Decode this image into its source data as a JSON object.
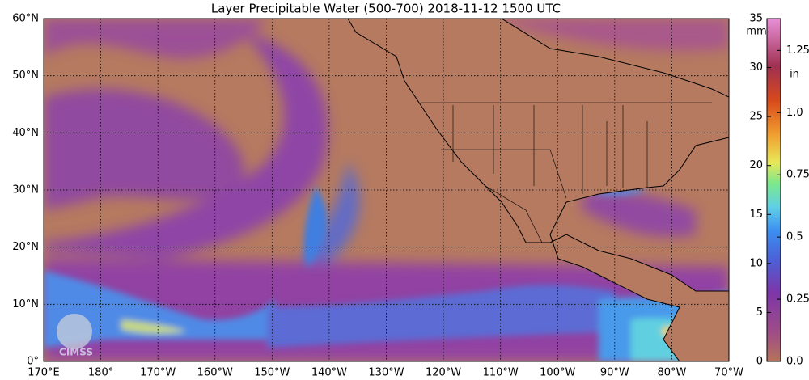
{
  "title": "Layer Precipitable Water (500-700)  2018-11-12 1500 UTC",
  "map": {
    "lat_labels": [
      "60°N",
      "50°N",
      "40°N",
      "30°N",
      "20°N",
      "10°N",
      "0°"
    ],
    "lon_labels": [
      "170°E",
      "180°",
      "170°W",
      "160°W",
      "150°W",
      "140°W",
      "130°W",
      "120°W",
      "110°W",
      "100°W",
      "90°W",
      "80°W",
      "70°W"
    ]
  },
  "colorbar": {
    "range": [
      0,
      35
    ],
    "mm_label": "mm",
    "mm_ticks": [
      0,
      5,
      10,
      15,
      20,
      25,
      30,
      35
    ],
    "in_label": "in",
    "in_ticks": [
      {
        "value": 0,
        "label": "0.0"
      },
      {
        "value": 6.35,
        "label": "0.25"
      },
      {
        "value": 12.7,
        "label": "0.5"
      },
      {
        "value": 19.05,
        "label": "0.75"
      },
      {
        "value": 25.4,
        "label": "1.0"
      },
      {
        "value": 31.75,
        "label": "1.25"
      }
    ]
  },
  "logo": "CIMSS"
}
